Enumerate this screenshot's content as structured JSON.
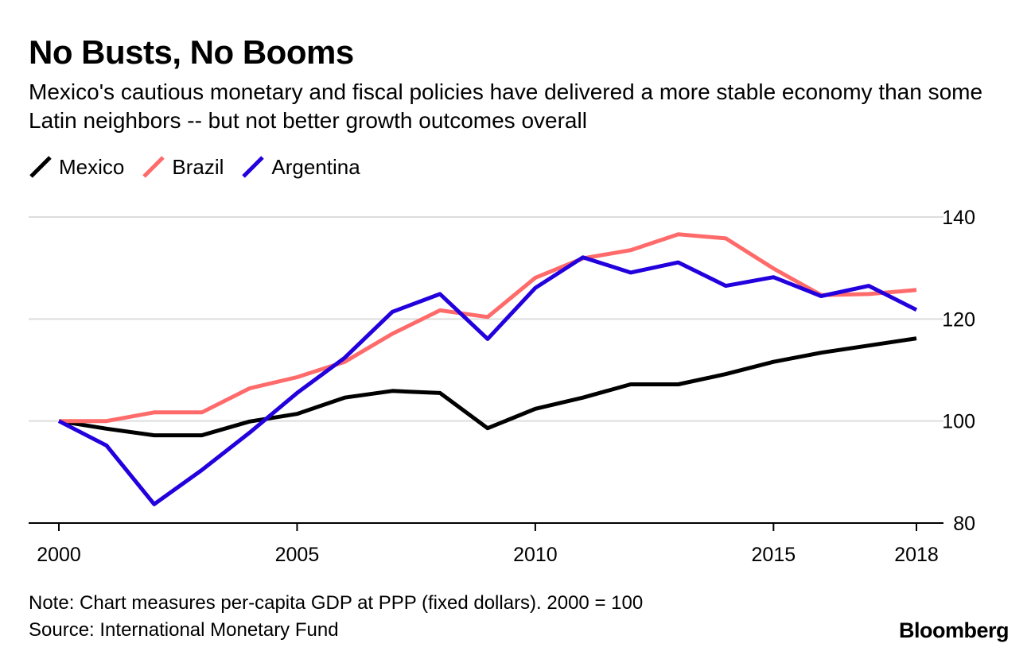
{
  "title": "No Busts, No Booms",
  "subtitle": "Mexico's cautious monetary and fiscal policies have delivered a more stable economy than some Latin neighbors -- but not better growth outcomes overall",
  "note": "Note: Chart measures per-capita GDP at PPP (fixed dollars). 2000 = 100",
  "source": "Source: International Monetary Fund",
  "brand": "Bloomberg",
  "chart_data": {
    "type": "line",
    "xlabel": "",
    "ylabel": "",
    "xlim": [
      2000,
      2018
    ],
    "ylim": [
      80,
      140
    ],
    "x_ticks": [
      2000,
      2005,
      2010,
      2015,
      2018
    ],
    "y_ticks": [
      80,
      100,
      120,
      140
    ],
    "grid": "horizontal",
    "legend_position": "top-left",
    "x": [
      2000,
      2001,
      2002,
      2003,
      2004,
      2005,
      2006,
      2007,
      2008,
      2009,
      2010,
      2011,
      2012,
      2013,
      2014,
      2015,
      2016,
      2017,
      2018
    ],
    "series": [
      {
        "name": "Mexico",
        "color": "#000000",
        "values": [
          100,
          98.5,
          97.2,
          97.2,
          99.9,
          101.4,
          104.6,
          105.9,
          105.5,
          98.6,
          102.4,
          104.6,
          107.2,
          107.2,
          109.2,
          111.6,
          113.4,
          114.8,
          116.2
        ]
      },
      {
        "name": "Brazil",
        "color": "#ff6b6b",
        "values": [
          100,
          100,
          101.7,
          101.7,
          106.4,
          108.6,
          111.6,
          117.1,
          121.7,
          120.4,
          128.1,
          131.9,
          133.5,
          136.6,
          135.8,
          129.9,
          124.7,
          124.9,
          125.7
        ]
      },
      {
        "name": "Argentina",
        "color": "#2200dd",
        "values": [
          100,
          95.2,
          83.7,
          90.4,
          97.7,
          105.5,
          112.4,
          121.4,
          124.9,
          116.1,
          126.1,
          132.1,
          129.1,
          131.1,
          126.5,
          128.2,
          124.5,
          126.5,
          121.8
        ]
      }
    ]
  }
}
